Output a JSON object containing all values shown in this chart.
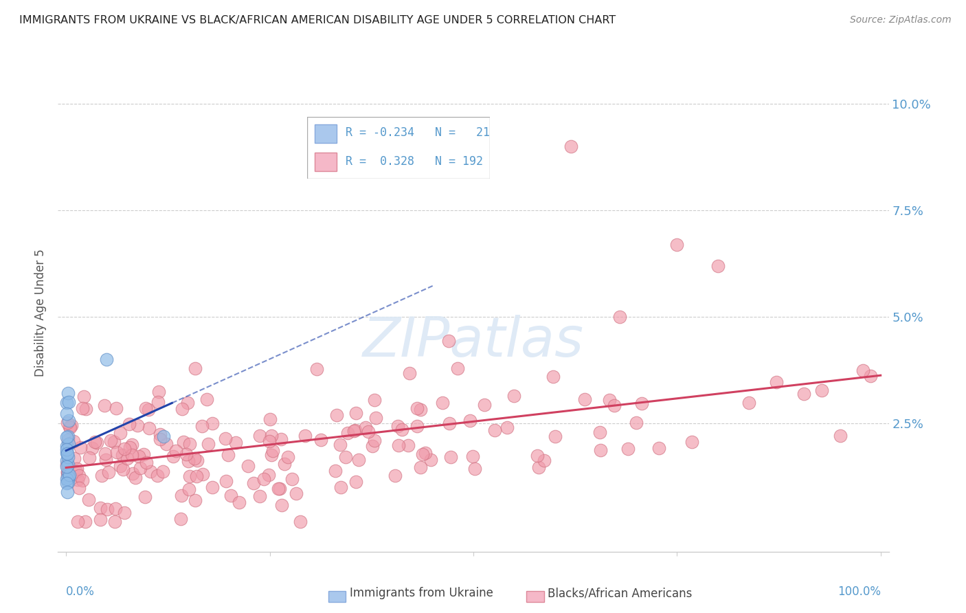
{
  "title": "IMMIGRANTS FROM UKRAINE VS BLACK/AFRICAN AMERICAN DISABILITY AGE UNDER 5 CORRELATION CHART",
  "source": "Source: ZipAtlas.com",
  "ylabel": "Disability Age Under 5",
  "ytick_labels": [
    "",
    "2.5%",
    "5.0%",
    "7.5%",
    "10.0%"
  ],
  "ytick_values": [
    0.0,
    0.025,
    0.05,
    0.075,
    0.1
  ],
  "legend1_color": "#aac8ed",
  "legend2_color": "#f5b8c8",
  "ukraine_color": "#90bce8",
  "ukraine_edge": "#6090c8",
  "black_color": "#f09aaa",
  "black_edge": "#d07080",
  "ukraine_line_color": "#2244aa",
  "black_line_color": "#d04060",
  "watermark_color": "#dce8f5",
  "grid_color": "#cccccc",
  "axis_label_color": "#5599cc",
  "ylabel_color": "#555555",
  "title_color": "#222222",
  "source_color": "#888888"
}
